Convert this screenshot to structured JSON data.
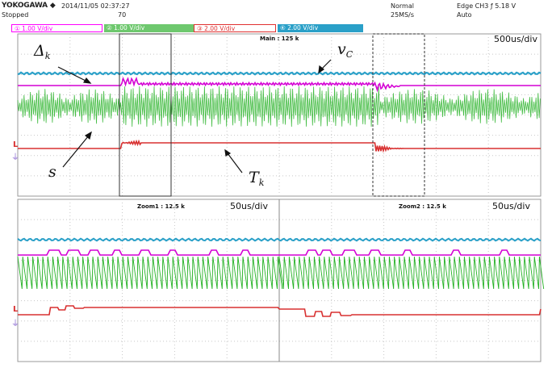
{
  "header": {
    "brand": "YOKOGAWA ◆",
    "datetime": "2014/11/05 02:37:27",
    "state": "Stopped",
    "count": "70",
    "trigger_mode": "Normal",
    "sample_rate": "25MS/s",
    "trigger": "Edge CH3 ƒ 5.18 V",
    "trigger_sub": "Auto"
  },
  "channels": [
    {
      "label": "① 1.00 V/div",
      "color": "#ff00ff",
      "bg": "#ffffff"
    },
    {
      "label": "② 1.00 V/div",
      "color": "#ffffff",
      "bg": "#6ec86e"
    },
    {
      "label": "③ 2.00 V/div",
      "color": "#e03030",
      "bg": "#ffffff"
    },
    {
      "label": "④ 2.00 V/div",
      "color": "#ffffff",
      "bg": "#2aa0c8"
    }
  ],
  "main": {
    "title": "Main : 125 k",
    "timebase": "500us/div"
  },
  "zoom1": {
    "title": "Zoom1 : 12.5 k",
    "timebase": "50us/div"
  },
  "zoom2": {
    "title": "Zoom2 : 12.5 k",
    "timebase": "50us/div"
  },
  "annotations": {
    "delta": "Δ",
    "delta_sub": "k",
    "vc": "v",
    "vc_sub": "C",
    "s": "s",
    "tk": "T",
    "tk_sub": "k"
  },
  "colors": {
    "magenta": "#d400d4",
    "green": "#22b022",
    "red": "#d83030",
    "blue": "#2aa0c8",
    "grid": "#c8c8c8"
  }
}
